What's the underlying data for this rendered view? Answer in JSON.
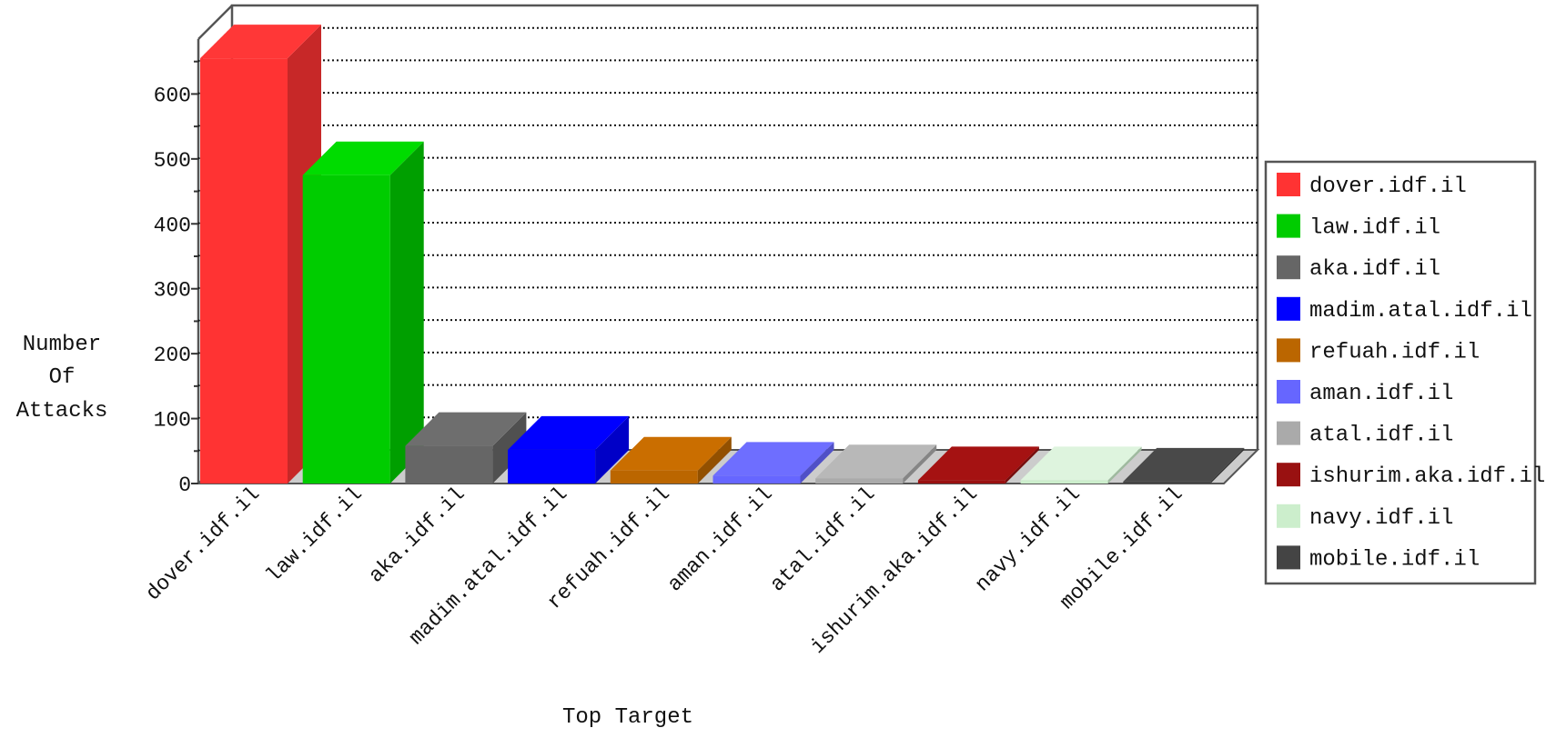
{
  "chart_data": {
    "type": "bar",
    "title": "",
    "xlabel": "Top Target",
    "ylabel_lines": [
      "Number",
      "Of",
      "Attacks"
    ],
    "ylim": [
      0,
      700
    ],
    "yticks": [
      0,
      100,
      200,
      300,
      400,
      500,
      600
    ],
    "grid": true,
    "legend_position": "right",
    "categories": [
      "dover.idf.il",
      "law.idf.il",
      "aka.idf.il",
      "madim.atal.idf.il",
      "refuah.idf.il",
      "aman.idf.il",
      "atal.idf.il",
      "ishurim.aka.idf.il",
      "navy.idf.il",
      "mobile.idf.il"
    ],
    "values": [
      655,
      475,
      58,
      52,
      20,
      12,
      8,
      5,
      5,
      3
    ],
    "colors": [
      "#ff3333",
      "#00cc00",
      "#666666",
      "#0000ff",
      "#bb6600",
      "#6666ff",
      "#aaaaaa",
      "#991111",
      "#cceecc",
      "#444444"
    ]
  }
}
